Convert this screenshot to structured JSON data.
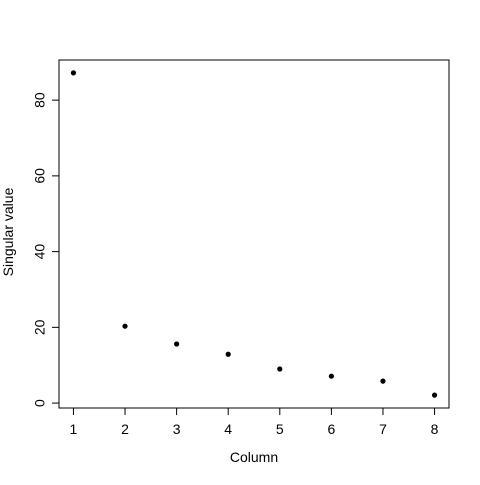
{
  "chart_data": {
    "type": "scatter",
    "title": "",
    "xlabel": "Column",
    "ylabel": "Singular value",
    "x": [
      1,
      2,
      3,
      4,
      5,
      6,
      7,
      8
    ],
    "y": [
      87.2,
      20.3,
      15.6,
      12.9,
      9.0,
      7.1,
      5.8,
      2.1
    ],
    "xlim": [
      0.72,
      8.28
    ],
    "ylim": [
      -1.3,
      90.6
    ],
    "xticks": [
      1,
      2,
      3,
      4,
      5,
      6,
      7,
      8
    ],
    "yticks": [
      0,
      20,
      40,
      60,
      80
    ],
    "grid": false,
    "legend": "none",
    "point_color": "#000000"
  }
}
